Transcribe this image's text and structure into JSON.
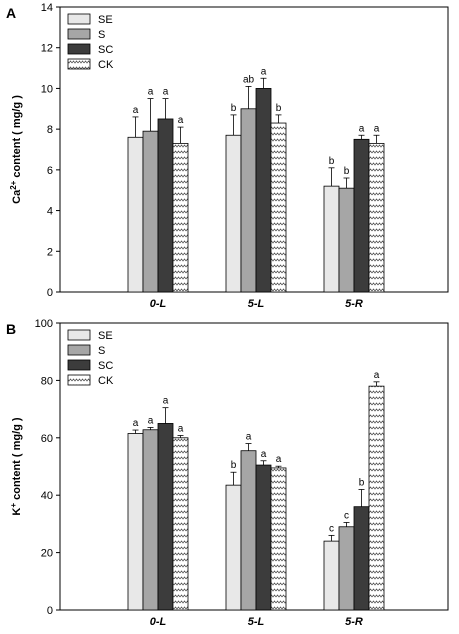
{
  "colors": {
    "SE": "#e8e8e8",
    "S": "#a6a6a6",
    "SC": "#3c3c3c",
    "CK": "#ffffff"
  },
  "patterns": {
    "CK": "zigzag"
  },
  "chart_data": [
    {
      "panel_label": "A",
      "type": "bar",
      "ylabel": "Ca2+ content ( mg/g )",
      "ylabel_parts": {
        "pre": "Ca",
        "sup": "2+",
        "post": " content ( mg/g )"
      },
      "ylim": [
        0,
        14
      ],
      "yticks": [
        0,
        2,
        4,
        6,
        8,
        10,
        12,
        14
      ],
      "categories": [
        "0-L",
        "5-L",
        "5-R"
      ],
      "legend": [
        "SE",
        "S",
        "SC",
        "CK"
      ],
      "legend_position": "top-left",
      "grid": false,
      "series": [
        {
          "name": "SE",
          "values": [
            7.6,
            7.7,
            5.2
          ],
          "errors": [
            1.0,
            1.0,
            0.9
          ],
          "letters": [
            "a",
            "b",
            "b"
          ]
        },
        {
          "name": "S",
          "values": [
            7.9,
            9.0,
            5.1
          ],
          "errors": [
            1.6,
            1.1,
            0.5
          ],
          "letters": [
            "a",
            "ab",
            "b"
          ]
        },
        {
          "name": "SC",
          "values": [
            8.5,
            10.0,
            7.5
          ],
          "errors": [
            1.0,
            0.5,
            0.2
          ],
          "letters": [
            "a",
            "a",
            "a"
          ]
        },
        {
          "name": "CK",
          "values": [
            7.3,
            8.3,
            7.3
          ],
          "errors": [
            0.8,
            0.4,
            0.4
          ],
          "letters": [
            "a",
            "b",
            "a"
          ]
        }
      ]
    },
    {
      "panel_label": "B",
      "type": "bar",
      "ylabel": "K+ content ( mg/g )",
      "ylabel_parts": {
        "pre": "K",
        "sup": "+",
        "post": " content ( mg/g )"
      },
      "ylim": [
        0,
        100
      ],
      "yticks": [
        0,
        20,
        40,
        60,
        80,
        100
      ],
      "categories": [
        "0-L",
        "5-L",
        "5-R"
      ],
      "legend": [
        "SE",
        "S",
        "SC",
        "CK"
      ],
      "legend_position": "top-left",
      "grid": false,
      "series": [
        {
          "name": "SE",
          "values": [
            61.5,
            43.5,
            24.0
          ],
          "errors": [
            1.2,
            4.5,
            2.0
          ],
          "letters": [
            "a",
            "b",
            "c"
          ]
        },
        {
          "name": "S",
          "values": [
            62.8,
            55.5,
            29.0
          ],
          "errors": [
            0.8,
            2.5,
            1.5
          ],
          "letters": [
            "a",
            "a",
            "c"
          ]
        },
        {
          "name": "SC",
          "values": [
            65.0,
            50.5,
            36.0
          ],
          "errors": [
            5.5,
            1.5,
            6.0
          ],
          "letters": [
            "a",
            "a",
            "b"
          ]
        },
        {
          "name": "CK",
          "values": [
            60.0,
            49.5,
            78.0
          ],
          "errors": [
            0.8,
            0.6,
            1.5
          ],
          "letters": [
            "a",
            "a",
            "a"
          ]
        }
      ]
    }
  ]
}
